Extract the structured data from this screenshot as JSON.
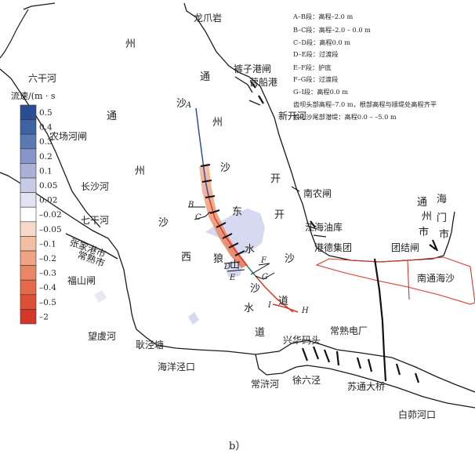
{
  "figure_label": "b）",
  "places": [
    {
      "id": "longzhuayan",
      "name": "龙爪岩"
    },
    {
      "id": "kuzigangzha",
      "name": "裤子港闸"
    },
    {
      "id": "yingchuangang",
      "name": "营船港"
    },
    {
      "id": "xinkaihe",
      "name": "新开河"
    },
    {
      "id": "nannongzha",
      "name": "南农闸"
    },
    {
      "id": "jianghaiyouku",
      "name": "江海油库"
    },
    {
      "id": "gangdejituan",
      "name": "港德集团"
    },
    {
      "id": "tuanjiezha",
      "name": "团结闸"
    },
    {
      "id": "nantonghaisha",
      "name": "南通海沙"
    },
    {
      "id": "liuganhe",
      "name": "六干河"
    },
    {
      "id": "nongchanghezha",
      "name": "农场河闸"
    },
    {
      "id": "changshahe",
      "name": "长沙河"
    },
    {
      "id": "qiganhe",
      "name": "七干河"
    },
    {
      "id": "zhangjiagangshi",
      "name": "张家港市"
    },
    {
      "id": "changshushi",
      "name": "常熟市"
    },
    {
      "id": "fushanzha",
      "name": "福山闸"
    },
    {
      "id": "wangyuhe",
      "name": "望虞河"
    },
    {
      "id": "gengjingtang",
      "name": "耿泾塘"
    },
    {
      "id": "haiyangjingkou",
      "name": "海洋泾口"
    },
    {
      "id": "xinghuamatou",
      "name": "兴华码头"
    },
    {
      "id": "changshudianchang",
      "name": "常熟电厂"
    },
    {
      "id": "changxuhe",
      "name": "常浒河"
    },
    {
      "id": "xuliujing",
      "name": "徐六泾"
    },
    {
      "id": "sutongdaqiao",
      "name": "苏通大桥"
    },
    {
      "id": "baimaohekou",
      "name": "白茆河口"
    }
  ],
  "water_labels": {
    "tongzhoushadao_east": [
      "州",
      "通",
      "州",
      "沙"
    ],
    "tongzhoushadao_west": [
      "通",
      "州",
      "沙"
    ],
    "dongkaisha": [
      "东",
      "开",
      "沙"
    ],
    "xilangshan": [
      "西",
      "狼",
      "山"
    ],
    "shuidao_left": [
      "水",
      "沙",
      "水"
    ],
    "shuidao_right": [
      "道",
      "道"
    ],
    "haimen_left": [
      "通",
      "州",
      "市"
    ],
    "haimen_right": [
      "海",
      "门",
      "市"
    ]
  },
  "segment_letters": [
    "A",
    "B",
    "C",
    "D",
    "E",
    "F",
    "G",
    "H",
    "I"
  ],
  "notes": [
    "A–B段：高程–2.0 m",
    "B–C段：高程–2.0 – 0.0 m",
    "C–D段：高程0.0 m",
    "D–E段：过渡段",
    "E–F段：护底",
    "F–G段：过渡段",
    "G–I段：高程0.0 m",
    "齿坝头部高程–7.0 m，根部高程与顺堤处高程齐平",
    "狼山沙尾部潜堤：高程0.0 – –5.0 m"
  ],
  "legend": {
    "title": "流速/(m · s",
    "entries": [
      {
        "label": "0.5",
        "color": "#2b4e92"
      },
      {
        "label": "0.4",
        "color": "#3e63a3"
      },
      {
        "label": "0.3",
        "color": "#5a7ab3"
      },
      {
        "label": "0.2",
        "color": "#8695c6"
      },
      {
        "label": "0.1",
        "color": "#a9b2d6"
      },
      {
        "label": "0.05",
        "color": "#c7cbe5"
      },
      {
        "label": "0.02",
        "color": "#e2e3f1"
      },
      {
        "label": "–0.02",
        "color": "#ffffff"
      },
      {
        "label": "–0.05",
        "color": "#f6d9cb"
      },
      {
        "label": "–0.1",
        "color": "#f2bfa3"
      },
      {
        "label": "–0.2",
        "color": "#eea383"
      },
      {
        "label": "–0.3",
        "color": "#e98764"
      },
      {
        "label": "–0.4",
        "color": "#e36a4a"
      },
      {
        "label": "–0.5",
        "color": "#dc5035"
      },
      {
        "label": "–2",
        "color": "#d6362a"
      }
    ]
  },
  "colors": {
    "coastline": "#1a1a1a",
    "dike_blue": "#2e4f9a",
    "dike_red": "#d9382b",
    "dike_green": "#2e8a57",
    "nantong_sha_outline": "#d9382b",
    "lavender": "#d6d9ef"
  }
}
